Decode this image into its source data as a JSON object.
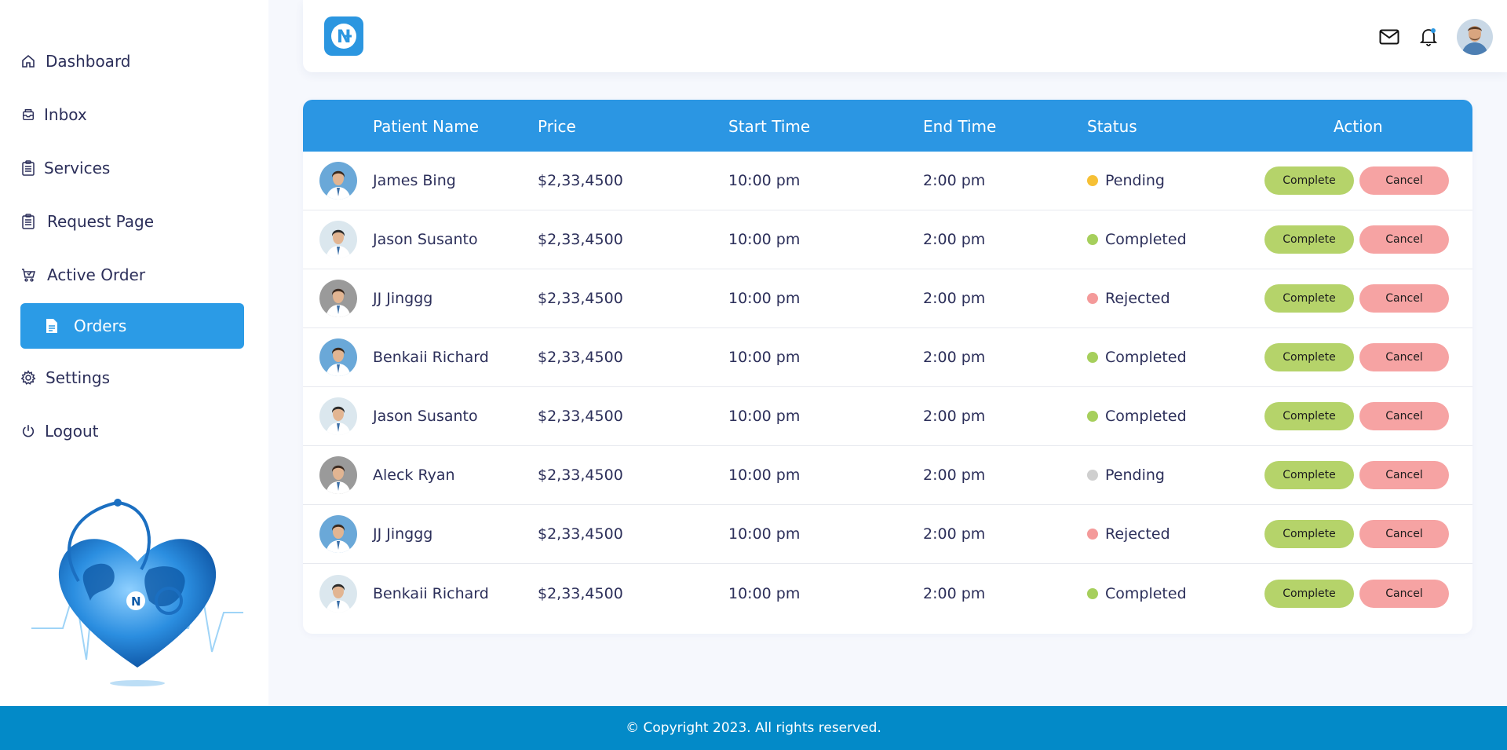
{
  "sidebar": {
    "items": [
      {
        "label": "Dashboard",
        "icon": "home-icon"
      },
      {
        "label": "Inbox",
        "icon": "inbox-icon"
      },
      {
        "label": "Services",
        "icon": "clipboard-icon"
      },
      {
        "label": "Request Page",
        "icon": "clipboard-icon"
      },
      {
        "label": "Active Order",
        "icon": "cart-icon"
      },
      {
        "label": "Orders",
        "icon": "document-icon",
        "active": true
      },
      {
        "label": "Settings",
        "icon": "gear-icon"
      },
      {
        "label": "Logout",
        "icon": "power-icon"
      }
    ]
  },
  "header": {
    "logo_letter": "N"
  },
  "table": {
    "columns": [
      "Patient Name",
      "Price",
      "Start Time",
      "End Time",
      "Status",
      "Action"
    ],
    "complete_label": "Complete",
    "cancel_label": "Cancel",
    "rows": [
      {
        "name": "James Bing",
        "price": "$2,33,4500",
        "start": "10:00 pm",
        "end": "2:00 pm",
        "status": "Pending",
        "status_color": "#f6c035"
      },
      {
        "name": "Jason Susanto",
        "price": "$2,33,4500",
        "start": "10:00 pm",
        "end": "2:00 pm",
        "status": "Completed",
        "status_color": "#a6cf5c"
      },
      {
        "name": "JJ Jinggg",
        "price": "$2,33,4500",
        "start": "10:00 pm",
        "end": "2:00 pm",
        "status": "Rejected",
        "status_color": "#f49a9a"
      },
      {
        "name": "Benkaii Richard",
        "price": "$2,33,4500",
        "start": "10:00 pm",
        "end": "2:00 pm",
        "status": "Completed",
        "status_color": "#a6cf5c"
      },
      {
        "name": "Jason Susanto",
        "price": "$2,33,4500",
        "start": "10:00 pm",
        "end": "2:00 pm",
        "status": "Completed",
        "status_color": "#a6cf5c"
      },
      {
        "name": "Aleck Ryan",
        "price": "$2,33,4500",
        "start": "10:00 pm",
        "end": "2:00 pm",
        "status": "Pending",
        "status_color": "#cfcfcf"
      },
      {
        "name": "JJ Jinggg",
        "price": "$2,33,4500",
        "start": "10:00 pm",
        "end": "2:00 pm",
        "status": "Rejected",
        "status_color": "#f49a9a"
      },
      {
        "name": "Benkaii Richard",
        "price": "$2,33,4500",
        "start": "10:00 pm",
        "end": "2:00 pm",
        "status": "Completed",
        "status_color": "#a6cf5c"
      }
    ]
  },
  "footer": {
    "copyright": "© Copyright 2023. All rights reserved."
  },
  "colors": {
    "accent": "#2b96e3",
    "footer": "#038ac8",
    "complete_button": "#b5d36a",
    "cancel_button": "#f6a3a3"
  }
}
